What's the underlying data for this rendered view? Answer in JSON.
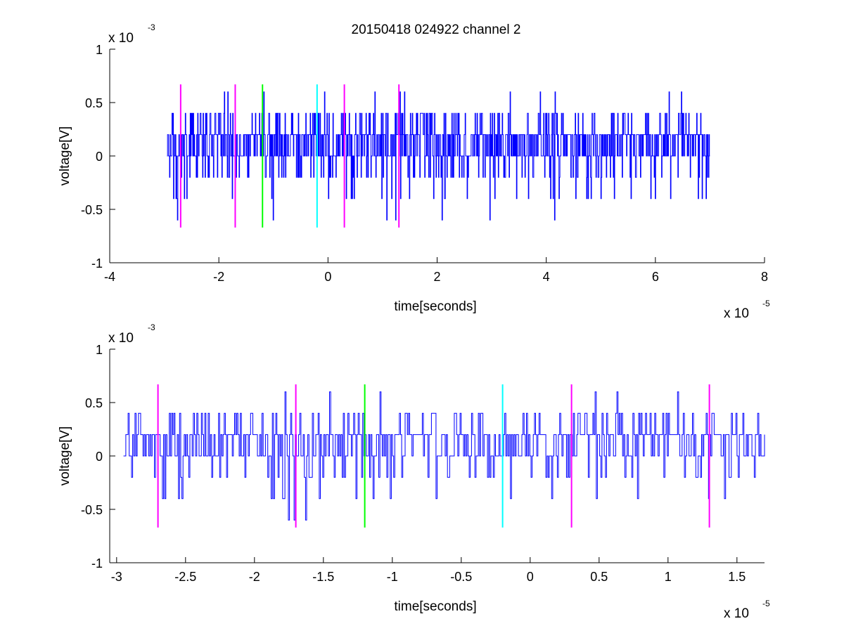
{
  "figure": {
    "title": "20150418 024922 channel 2",
    "colors": {
      "signal": "#0000ff",
      "magenta": "#ff00ff",
      "green": "#00ff00",
      "cyan": "#00ffff",
      "axes": "#000000"
    }
  },
  "chart_data": [
    {
      "type": "line",
      "title": "20150418 024922 channel 2",
      "xlabel": "time[seconds]",
      "ylabel": "voltage[V]",
      "x_multiplier": {
        "base": "x 10",
        "exponent": "-5"
      },
      "y_multiplier": {
        "base": "x 10",
        "exponent": "-3"
      },
      "xlim": [
        -4,
        8
      ],
      "ylim": [
        -1,
        1
      ],
      "xticks": [
        -4,
        -2,
        0,
        2,
        4,
        6,
        8
      ],
      "xtick_labels": [
        "-4",
        "-2",
        "0",
        "2",
        "4",
        "6",
        "8"
      ],
      "yticks": [
        -1,
        -0.5,
        0,
        0.5,
        1
      ],
      "ytick_labels": [
        "-1",
        "-0.5",
        "0",
        "0.5",
        "1"
      ],
      "grid": false,
      "signal": {
        "color": "#0000ff",
        "x_start": -2.95,
        "x_end": 7.0,
        "levels": [
          -0.6,
          -0.4,
          -0.2,
          0,
          0.2,
          0.4,
          0.6
        ],
        "dominant_levels": [
          0,
          0.2
        ]
      },
      "markers": [
        {
          "x": -2.7,
          "color": "#ff00ff",
          "ymin": -0.67,
          "ymax": 0.67
        },
        {
          "x": -1.7,
          "color": "#ff00ff",
          "ymin": -0.67,
          "ymax": 0.67
        },
        {
          "x": -1.2,
          "color": "#00ff00",
          "ymin": -0.67,
          "ymax": 0.67
        },
        {
          "x": -0.2,
          "color": "#00ffff",
          "ymin": -0.67,
          "ymax": 0.67
        },
        {
          "x": 0.3,
          "color": "#ff00ff",
          "ymin": -0.67,
          "ymax": 0.67
        },
        {
          "x": 1.3,
          "color": "#ff00ff",
          "ymin": -0.67,
          "ymax": 0.67
        }
      ]
    },
    {
      "type": "line",
      "title": "",
      "xlabel": "time[seconds]",
      "ylabel": "voltage[V]",
      "x_multiplier": {
        "base": "x 10",
        "exponent": "-5"
      },
      "y_multiplier": {
        "base": "x 10",
        "exponent": "-3"
      },
      "xlim": [
        -3.05,
        1.7
      ],
      "ylim": [
        -1,
        1
      ],
      "xticks": [
        -3,
        -2.5,
        -2,
        -1.5,
        -1,
        -0.5,
        0,
        0.5,
        1,
        1.5
      ],
      "xtick_labels": [
        "-3",
        "-2.5",
        "-2",
        "-1.5",
        "-1",
        "-0.5",
        "0",
        "0.5",
        "1",
        "1.5"
      ],
      "yticks": [
        -1,
        -0.5,
        0,
        0.5,
        1
      ],
      "ytick_labels": [
        "-1",
        "-0.5",
        "0",
        "0.5",
        "1"
      ],
      "grid": false,
      "signal": {
        "color": "#0000ff",
        "x_start": -2.95,
        "x_end": 1.7,
        "levels": [
          -0.6,
          -0.4,
          -0.2,
          0,
          0.2,
          0.4
        ],
        "dominant_levels": [
          0,
          0.2
        ]
      },
      "markers": [
        {
          "x": -2.7,
          "color": "#ff00ff",
          "ymin": -0.67,
          "ymax": 0.67
        },
        {
          "x": -1.7,
          "color": "#ff00ff",
          "ymin": -0.67,
          "ymax": 0.67
        },
        {
          "x": -1.2,
          "color": "#00ff00",
          "ymin": -0.67,
          "ymax": 0.67
        },
        {
          "x": -0.2,
          "color": "#00ffff",
          "ymin": -0.67,
          "ymax": 0.67
        },
        {
          "x": 0.3,
          "color": "#ff00ff",
          "ymin": -0.67,
          "ymax": 0.67
        },
        {
          "x": 1.3,
          "color": "#ff00ff",
          "ymin": -0.67,
          "ymax": 0.67
        }
      ]
    }
  ]
}
